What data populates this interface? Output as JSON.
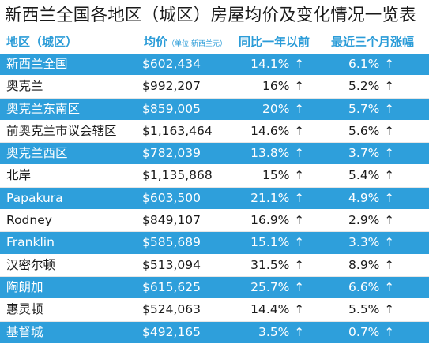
{
  "title": "新西兰全国各地区（城区）房屋均价及变化情况一览表",
  "header": {
    "region": "地区（城区）",
    "price": "均价",
    "price_unit": "（单位:新西兰元）",
    "yoy": "同比一年以前",
    "three_month": "最近三个月涨幅"
  },
  "arrow_glyph": "↑",
  "colors": {
    "accent": "#2e9fdb",
    "header_text": "#2b9cd8"
  },
  "rows": [
    {
      "region": "新西兰全国",
      "price": "$602,434",
      "yoy": "14.1%",
      "three_month": "6.1%",
      "highlight": true
    },
    {
      "region": "奥克兰",
      "price": "$992,207",
      "yoy": "16%",
      "three_month": "5.2%",
      "highlight": false
    },
    {
      "region": "奥克兰东南区",
      "price": "$859,005",
      "yoy": "20%",
      "three_month": "5.7%",
      "highlight": true
    },
    {
      "region": "前奥克兰市议会辖区",
      "price": "$1,163,464",
      "yoy": "14.6%",
      "three_month": "5.6%",
      "highlight": false
    },
    {
      "region": "奥克兰西区",
      "price": "$782,039",
      "yoy": "13.8%",
      "three_month": "3.7%",
      "highlight": true
    },
    {
      "region": "北岸",
      "price": "$1,135,868",
      "yoy": "15%",
      "three_month": "5.4%",
      "highlight": false
    },
    {
      "region": "Papakura",
      "price": "$603,500",
      "yoy": "21.1%",
      "three_month": "4.9%",
      "highlight": true
    },
    {
      "region": "Rodney",
      "price": "$849,107",
      "yoy": "16.9%",
      "three_month": "2.9%",
      "highlight": false
    },
    {
      "region": "Franklin",
      "price": "$585,689",
      "yoy": "15.1%",
      "three_month": "3.3%",
      "highlight": true
    },
    {
      "region": "汉密尔顿",
      "price": "$513,094",
      "yoy": "31.5%",
      "three_month": "8.9%",
      "highlight": false
    },
    {
      "region": "陶朗加",
      "price": "$615,625",
      "yoy": "25.7%",
      "three_month": "6.6%",
      "highlight": true
    },
    {
      "region": "惠灵顿",
      "price": "$524,063",
      "yoy": "14.4%",
      "three_month": "5.5%",
      "highlight": false
    },
    {
      "region": "基督城",
      "price": "$492,165",
      "yoy": "3.5%",
      "three_month": "0.7%",
      "highlight": true
    }
  ]
}
